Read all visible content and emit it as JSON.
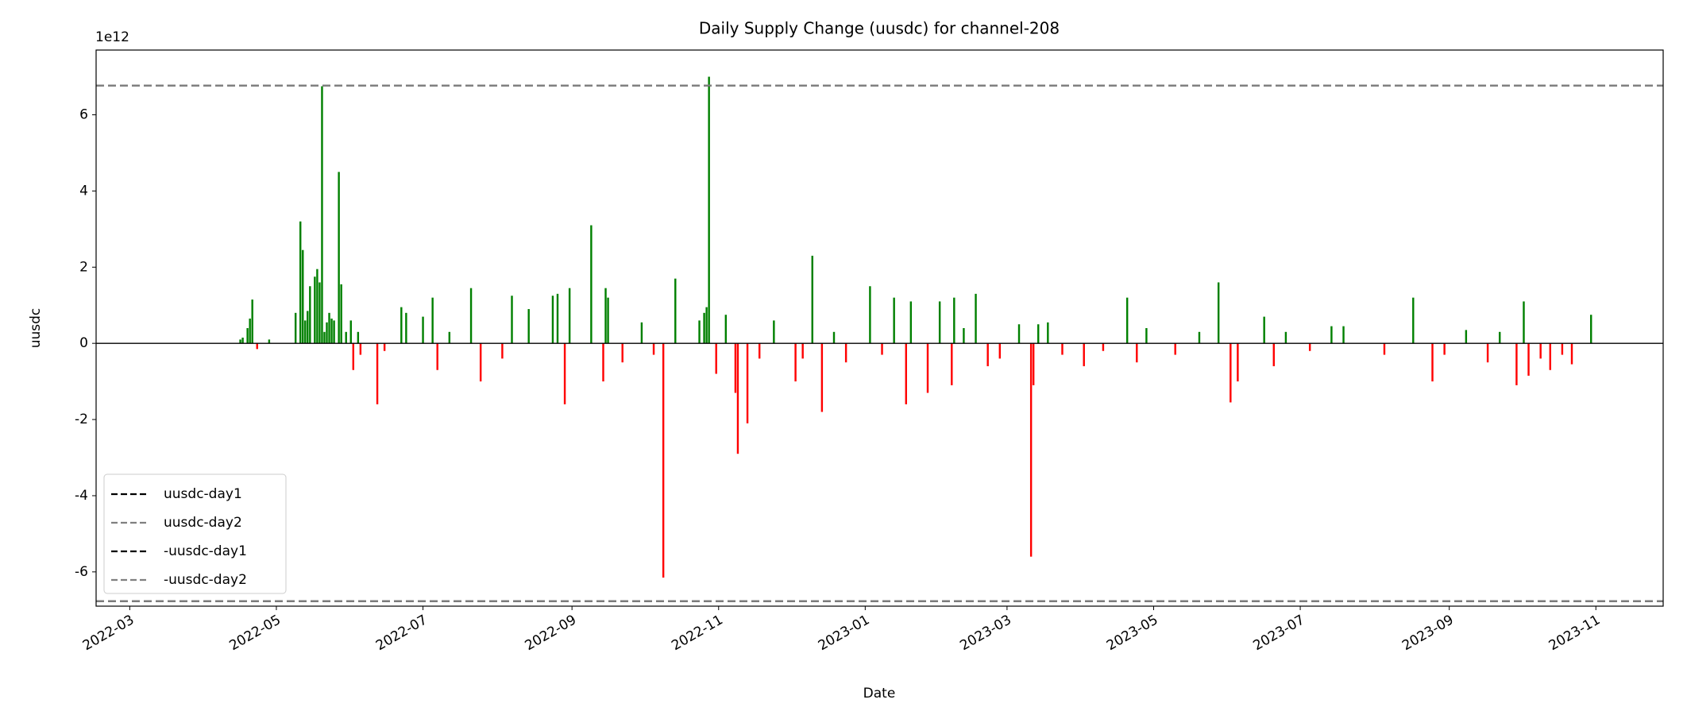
{
  "chart_data": {
    "type": "bar",
    "title": "Daily Supply Change (uusdc) for channel-208",
    "x_label": "Date",
    "y_label": "uusdc",
    "y_offset_label": "1e12",
    "pos_color": "green",
    "neg_color": "red",
    "xlim": [
      "2022-02-15",
      "2023-11-29"
    ],
    "xticks": [
      {
        "value": "2022-03-01",
        "label": "2022-03"
      },
      {
        "value": "2022-05-01",
        "label": "2022-05"
      },
      {
        "value": "2022-07-01",
        "label": "2022-07"
      },
      {
        "value": "2022-09-01",
        "label": "2022-09"
      },
      {
        "value": "2022-11-01",
        "label": "2022-11"
      },
      {
        "value": "2023-01-01",
        "label": "2023-01"
      },
      {
        "value": "2023-03-01",
        "label": "2023-03"
      },
      {
        "value": "2023-05-01",
        "label": "2023-05"
      },
      {
        "value": "2023-07-01",
        "label": "2023-07"
      },
      {
        "value": "2023-09-01",
        "label": "2023-09"
      },
      {
        "value": "2023-11-01",
        "label": "2023-11"
      }
    ],
    "ylim": [
      -6.9,
      7.7
    ],
    "yticks": [
      -6,
      -4,
      -2,
      0,
      2,
      4,
      6
    ],
    "x": [
      "2022-04-16",
      "2022-04-17",
      "2022-04-19",
      "2022-04-20",
      "2022-04-21",
      "2022-04-23",
      "2022-04-28",
      "2022-05-09",
      "2022-05-11",
      "2022-05-12",
      "2022-05-13",
      "2022-05-14",
      "2022-05-15",
      "2022-05-17",
      "2022-05-18",
      "2022-05-19",
      "2022-05-20",
      "2022-05-21",
      "2022-05-22",
      "2022-05-23",
      "2022-05-24",
      "2022-05-25",
      "2022-05-27",
      "2022-05-28",
      "2022-05-30",
      "2022-06-01",
      "2022-06-02",
      "2022-06-04",
      "2022-06-05",
      "2022-06-12",
      "2022-06-15",
      "2022-06-22",
      "2022-06-24",
      "2022-07-01",
      "2022-07-05",
      "2022-07-07",
      "2022-07-12",
      "2022-07-21",
      "2022-07-25",
      "2022-08-03",
      "2022-08-07",
      "2022-08-14",
      "2022-08-24",
      "2022-08-26",
      "2022-08-29",
      "2022-08-31",
      "2022-09-09",
      "2022-09-14",
      "2022-09-15",
      "2022-09-16",
      "2022-09-22",
      "2022-09-30",
      "2022-10-05",
      "2022-10-09",
      "2022-10-14",
      "2022-10-24",
      "2022-10-26",
      "2022-10-27",
      "2022-10-28",
      "2022-10-31",
      "2022-11-04",
      "2022-11-08",
      "2022-11-09",
      "2022-11-13",
      "2022-11-18",
      "2022-11-24",
      "2022-12-03",
      "2022-12-06",
      "2022-12-10",
      "2022-12-14",
      "2022-12-19",
      "2022-12-24",
      "2023-01-03",
      "2023-01-08",
      "2023-01-13",
      "2023-01-18",
      "2023-01-20",
      "2023-01-27",
      "2023-02-01",
      "2023-02-06",
      "2023-02-07",
      "2023-02-11",
      "2023-02-16",
      "2023-02-21",
      "2023-02-26",
      "2023-03-06",
      "2023-03-11",
      "2023-03-12",
      "2023-03-14",
      "2023-03-18",
      "2023-03-24",
      "2023-04-02",
      "2023-04-10",
      "2023-04-20",
      "2023-04-24",
      "2023-04-28",
      "2023-05-10",
      "2023-05-20",
      "2023-05-28",
      "2023-06-02",
      "2023-06-05",
      "2023-06-16",
      "2023-06-20",
      "2023-06-25",
      "2023-07-05",
      "2023-07-14",
      "2023-07-19",
      "2023-08-05",
      "2023-08-17",
      "2023-08-25",
      "2023-08-30",
      "2023-09-08",
      "2023-09-17",
      "2023-09-22",
      "2023-09-29",
      "2023-10-02",
      "2023-10-04",
      "2023-10-09",
      "2023-10-13",
      "2023-10-18",
      "2023-10-22",
      "2023-10-30"
    ],
    "values": [
      0.1,
      0.15,
      0.4,
      0.65,
      1.15,
      -0.15,
      0.1,
      0.8,
      3.2,
      2.45,
      0.6,
      0.85,
      1.5,
      1.75,
      1.95,
      1.6,
      6.75,
      0.3,
      0.55,
      0.8,
      0.65,
      0.6,
      4.5,
      1.55,
      0.3,
      0.6,
      -0.7,
      0.3,
      -0.3,
      -1.6,
      -0.2,
      0.95,
      0.8,
      0.7,
      1.2,
      -0.7,
      0.3,
      1.45,
      -1.0,
      -0.4,
      1.25,
      0.9,
      1.25,
      1.3,
      -1.6,
      1.45,
      3.1,
      -1.0,
      1.45,
      1.2,
      -0.5,
      0.55,
      -0.3,
      -6.15,
      1.7,
      0.6,
      0.8,
      0.95,
      7.0,
      -0.8,
      0.75,
      -1.3,
      -2.9,
      -2.1,
      -0.4,
      0.6,
      -1.0,
      -0.4,
      2.3,
      -1.8,
      0.3,
      -0.5,
      1.5,
      -0.3,
      1.2,
      -1.6,
      1.1,
      -1.3,
      1.1,
      -1.1,
      1.2,
      0.4,
      1.3,
      -0.6,
      -0.4,
      0.5,
      -5.6,
      -1.1,
      0.5,
      0.55,
      -0.3,
      -0.6,
      -0.2,
      1.2,
      -0.5,
      0.4,
      -0.3,
      0.3,
      1.6,
      -1.55,
      -1.0,
      0.7,
      -0.6,
      0.3,
      -0.2,
      0.45,
      0.45,
      -0.3,
      1.2,
      -1.0,
      -0.3,
      0.35,
      -0.5,
      0.3,
      -1.1,
      1.1,
      -0.85,
      -0.4,
      -0.7,
      -0.3,
      -0.55,
      0.75
    ],
    "series": [
      {
        "name": "uusdc-day1",
        "color": "black",
        "value": 6.77
      },
      {
        "name": "uusdc-day2",
        "color": "gray",
        "value": 6.77
      },
      {
        "name": "-uusdc-day1",
        "color": "black",
        "value": -6.77
      },
      {
        "name": "-uusdc-day2",
        "color": "gray",
        "value": -6.77
      }
    ]
  }
}
